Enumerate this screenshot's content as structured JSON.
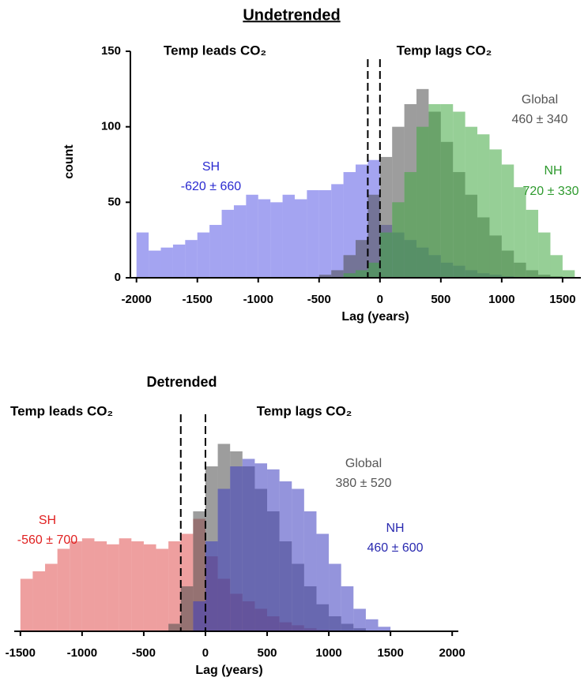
{
  "page_title": "Undetrended",
  "chart_data": [
    {
      "type": "histogram",
      "title": null,
      "bins": [
        -2000,
        -1900,
        -1800,
        -1700,
        -1600,
        -1500,
        -1400,
        -1300,
        -1200,
        -1100,
        -1000,
        -900,
        -800,
        -700,
        -600,
        -500,
        -400,
        -300,
        -200,
        -100,
        0,
        100,
        200,
        300,
        400,
        500,
        600,
        700,
        800,
        900,
        1000,
        1100,
        1200,
        1300,
        1400,
        1500,
        1600
      ],
      "series": [
        {
          "name": "SH",
          "color": "#5a5ae6",
          "values": [
            30,
            18,
            20,
            22,
            25,
            30,
            35,
            45,
            48,
            55,
            52,
            50,
            55,
            52,
            58,
            58,
            62,
            70,
            75,
            78,
            35,
            30,
            25,
            20,
            15,
            10,
            8,
            5,
            3,
            2,
            1,
            0,
            0,
            0,
            0,
            0
          ]
        },
        {
          "name": "Global",
          "color": "#4d4d4d",
          "values": [
            0,
            0,
            0,
            0,
            0,
            0,
            0,
            0,
            0,
            0,
            0,
            0,
            0,
            0,
            0,
            2,
            5,
            15,
            25,
            55,
            80,
            100,
            115,
            125,
            110,
            90,
            70,
            55,
            40,
            28,
            18,
            10,
            5,
            2,
            1,
            0
          ]
        },
        {
          "name": "NH",
          "color": "#3fa83f",
          "values": [
            0,
            0,
            0,
            0,
            0,
            0,
            0,
            0,
            0,
            0,
            0,
            0,
            0,
            0,
            0,
            0,
            0,
            3,
            5,
            10,
            30,
            50,
            70,
            100,
            115,
            115,
            110,
            100,
            95,
            85,
            75,
            60,
            45,
            30,
            15,
            5
          ]
        }
      ],
      "annotations": [
        {
          "text": "Temp leads CO₂",
          "color": "#000000"
        },
        {
          "text": "Temp lags CO₂",
          "color": "#000000"
        },
        {
          "text": "SH",
          "color": "#2a2ad0"
        },
        {
          "text": "-620 ± 660",
          "color": "#2a2ad0"
        },
        {
          "text": "Global",
          "color": "#555555"
        },
        {
          "text": "460 ± 340",
          "color": "#555555"
        },
        {
          "text": "NH",
          "color": "#2e9a2e"
        },
        {
          "text": "720 ± 330",
          "color": "#2e9a2e"
        }
      ],
      "ref_lines": [
        -100,
        0
      ],
      "xlim": [
        -2050,
        1650
      ],
      "ylim": [
        0,
        150
      ],
      "xticks": [
        -2000,
        -1500,
        -1000,
        -500,
        0,
        500,
        1000,
        1500
      ],
      "yticks": [
        0,
        50,
        100,
        150
      ],
      "x_label": "Lag (years)",
      "y_label": "count"
    },
    {
      "type": "histogram",
      "title": "Detrended",
      "bins": [
        -1500,
        -1400,
        -1300,
        -1200,
        -1100,
        -1000,
        -900,
        -800,
        -700,
        -600,
        -500,
        -400,
        -300,
        -200,
        -100,
        0,
        100,
        200,
        300,
        400,
        500,
        600,
        700,
        800,
        900,
        1000,
        1100,
        1200,
        1300,
        1400,
        1500,
        1600,
        1700,
        1800,
        1900,
        2000
      ],
      "series": [
        {
          "name": "SH",
          "color": "#e05050",
          "values": [
            35,
            40,
            45,
            55,
            60,
            62,
            60,
            58,
            62,
            60,
            58,
            55,
            60,
            65,
            75,
            50,
            35,
            25,
            20,
            15,
            10,
            6,
            4,
            2,
            1,
            0,
            0,
            0,
            0,
            0,
            0,
            0,
            0,
            0,
            0
          ]
        },
        {
          "name": "Global",
          "color": "#4d4d4d",
          "values": [
            0,
            0,
            0,
            0,
            0,
            0,
            0,
            0,
            0,
            0,
            0,
            0,
            5,
            30,
            80,
            110,
            125,
            120,
            110,
            95,
            80,
            60,
            45,
            30,
            18,
            10,
            5,
            2,
            0,
            0,
            0,
            0,
            0,
            0,
            0
          ]
        },
        {
          "name": "NH",
          "color": "#3c3cc0",
          "values": [
            0,
            0,
            0,
            0,
            0,
            0,
            0,
            0,
            0,
            0,
            0,
            0,
            0,
            0,
            20,
            60,
            95,
            110,
            115,
            112,
            108,
            100,
            95,
            80,
            65,
            45,
            30,
            15,
            8,
            3,
            0,
            0,
            0,
            0,
            0
          ]
        }
      ],
      "annotations": [
        {
          "text": "Temp leads CO₂",
          "color": "#000000"
        },
        {
          "text": "Temp lags CO₂",
          "color": "#000000"
        },
        {
          "text": "SH",
          "color": "#e02020"
        },
        {
          "text": "-560 ± 700",
          "color": "#e02020"
        },
        {
          "text": "Global",
          "color": "#555555"
        },
        {
          "text": "380 ± 520",
          "color": "#555555"
        },
        {
          "text": "NH",
          "color": "#2a2ab0"
        },
        {
          "text": "460 ± 600",
          "color": "#2a2ab0"
        }
      ],
      "ref_lines": [
        -200,
        0
      ],
      "xlim": [
        -1550,
        2050
      ],
      "ylim": [
        0,
        150
      ],
      "xticks": [
        -1500,
        -1000,
        -500,
        0,
        500,
        1000,
        1500,
        2000
      ],
      "x_label": "Lag (years)"
    }
  ]
}
